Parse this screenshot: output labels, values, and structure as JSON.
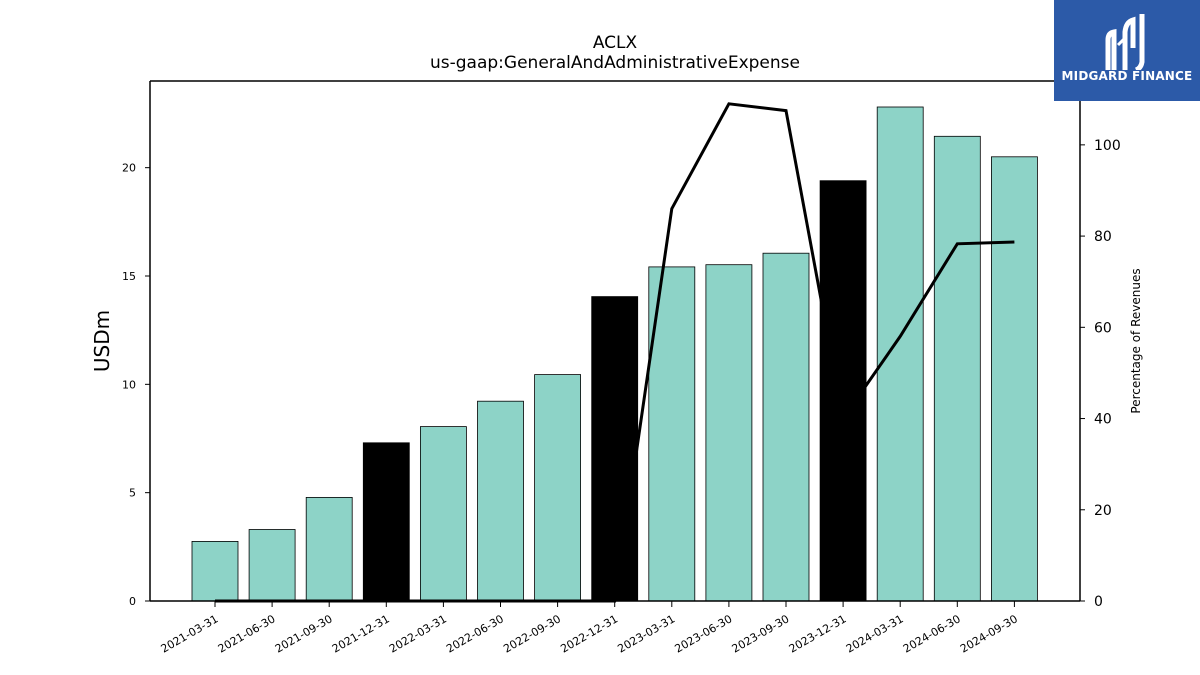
{
  "chart_data": {
    "type": "bar",
    "title": "ACLX",
    "subtitle": "us-gaap:GeneralAndAdministrativeExpense",
    "ylabel": "USDm",
    "y2label": "Percentage of Revenues",
    "ylim": [
      0,
      24
    ],
    "y2lim": [
      0,
      114
    ],
    "yticks": [
      "0",
      "5",
      "10",
      "15",
      "20"
    ],
    "y2ticks": [
      "0",
      "20",
      "40",
      "60",
      "80",
      "100"
    ],
    "categories": [
      "2021-03-31",
      "2021-06-30",
      "2021-09-30",
      "2021-12-31",
      "2022-03-31",
      "2022-06-30",
      "2022-09-30",
      "2022-12-31",
      "2023-03-31",
      "2023-06-30",
      "2023-09-30",
      "2023-12-31",
      "2024-03-31",
      "2024-06-30",
      "2024-09-30"
    ],
    "series": [
      {
        "values": [
          2.75,
          3.3,
          4.78,
          7.3,
          8.05,
          9.22,
          10.45,
          14.05,
          15.42,
          15.52,
          16.05,
          19.4,
          22.8,
          21.45,
          20.5
        ],
        "highlight": [
          false,
          false,
          false,
          true,
          false,
          false,
          false,
          true,
          false,
          false,
          false,
          true,
          false,
          false,
          false
        ],
        "color": "#8dd3c7",
        "highlight_color": "#000000"
      },
      {
        "type": "line",
        "axis": "right",
        "values": [
          0,
          0,
          0,
          0,
          0,
          0,
          0,
          0,
          86,
          109,
          107.5,
          40,
          58,
          78.3,
          78.7
        ],
        "color": "#000000"
      }
    ],
    "grid": false
  },
  "logo": {
    "text": "MIDGARD FINANCE",
    "background": "#2c5aa8"
  }
}
